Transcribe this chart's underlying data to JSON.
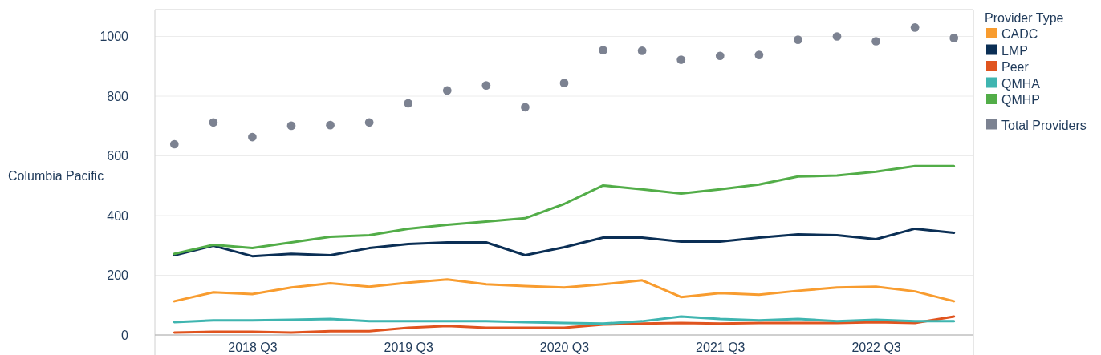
{
  "chart_data": {
    "type": "line",
    "ylabel": "Columbia Pacific",
    "legend_title": "Provider Type",
    "legend": "right",
    "grid": "y",
    "categories": [
      null,
      null,
      "2018 Q3",
      null,
      null,
      null,
      "2019 Q3",
      null,
      null,
      null,
      "2020 Q3",
      null,
      null,
      null,
      "2021 Q3",
      null,
      null,
      null,
      "2022 Q3",
      null,
      null
    ],
    "ylim": [
      0,
      1090
    ],
    "yticks": [
      0,
      200,
      400,
      600,
      800,
      1000
    ],
    "series": [
      {
        "name": "CADC",
        "color": "#f89c2f",
        "values": [
          113,
          143,
          137,
          159,
          173,
          162,
          175,
          186,
          170,
          164,
          159,
          170,
          183,
          127,
          140,
          135,
          148,
          159,
          162,
          146,
          113
        ]
      },
      {
        "name": "LMP",
        "color": "#0b2f55",
        "values": [
          267,
          299,
          264,
          272,
          267,
          291,
          305,
          310,
          310,
          267,
          294,
          326,
          326,
          313,
          313,
          326,
          337,
          334,
          321,
          356,
          342
        ]
      },
      {
        "name": "Peer",
        "color": "#e0541f",
        "values": [
          8,
          11,
          11,
          8,
          13,
          13,
          24,
          30,
          24,
          24,
          24,
          35,
          38,
          40,
          38,
          40,
          40,
          40,
          43,
          40,
          62
        ]
      },
      {
        "name": "QMHA",
        "color": "#3fb5b0",
        "values": [
          43,
          49,
          49,
          51,
          54,
          46,
          46,
          46,
          46,
          43,
          40,
          38,
          46,
          62,
          54,
          49,
          54,
          46,
          51,
          46,
          46
        ]
      },
      {
        "name": "QMHP",
        "color": "#52ad48",
        "values": [
          272,
          302,
          291,
          310,
          329,
          334,
          356,
          369,
          380,
          391,
          439,
          501,
          488,
          474,
          488,
          504,
          531,
          534,
          547,
          566,
          566
        ]
      },
      {
        "name": "Total Providers",
        "type": "scatter",
        "marker": "circle",
        "color": "#7c8291",
        "values": [
          639,
          712,
          663,
          701,
          703,
          712,
          776,
          819,
          836,
          763,
          844,
          954,
          952,
          922,
          935,
          938,
          989,
          1000,
          984,
          1030,
          995
        ]
      }
    ]
  }
}
